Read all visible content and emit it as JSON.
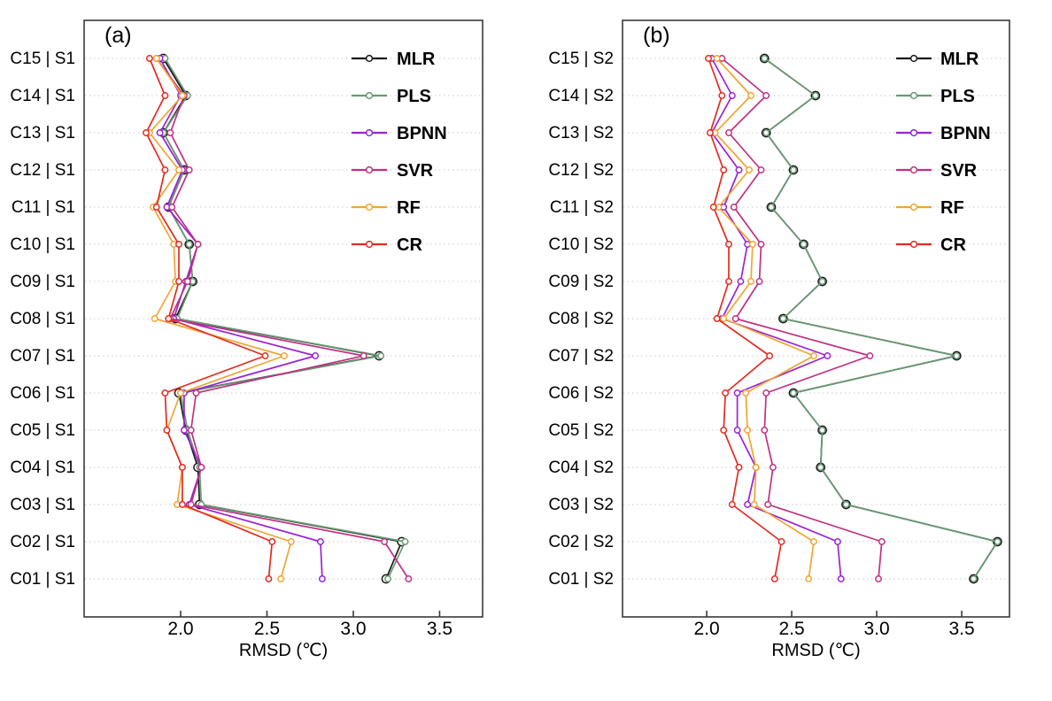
{
  "figure": {
    "background": "#ffffff",
    "axis_color": "#3a3a3a",
    "grid_color": "#c9c9c9",
    "text_color": "#000000"
  },
  "chart_data": [
    {
      "type": "line",
      "orientation": "horizontal-category",
      "panel_label": "(a)",
      "xlabel": "RMSD (℃)",
      "xticks": [
        "2.0",
        "2.5",
        "3.0",
        "3.5"
      ],
      "xtick_values": [
        2.0,
        2.5,
        3.0,
        3.5
      ],
      "xlim": [
        1.441,
        3.749
      ],
      "grid": "horizontal-dotted",
      "legend_position": "top-right-inside",
      "legend_entries": [
        "MLR",
        "PLS",
        "BPNN",
        "SVR",
        "RF",
        "CR"
      ],
      "categories": [
        "C15 | S1",
        "C14 | S1",
        "C13 | S1",
        "C12 | S1",
        "C11 | S1",
        "C10 | S1",
        "C09 | S1",
        "C08 | S1",
        "C07 | S1",
        "C06 | S1",
        "C05 | S1",
        "C04 | S1",
        "C03 | S1",
        "C02 | S1",
        "C01 | S1"
      ],
      "series": [
        {
          "name": "MLR",
          "color": "#1a1a1a",
          "values": [
            1.9,
            2.03,
            1.9,
            2.02,
            1.93,
            2.05,
            2.07,
            1.97,
            3.15,
            1.99,
            2.03,
            2.1,
            2.11,
            3.28,
            3.19
          ]
        },
        {
          "name": "PLS",
          "color": "#699a74",
          "values": [
            1.91,
            2.04,
            1.9,
            2.02,
            1.93,
            2.05,
            2.07,
            1.98,
            3.16,
            2.0,
            2.04,
            2.11,
            2.12,
            3.3,
            3.2
          ]
        },
        {
          "name": "BPNN",
          "color": "#9b22d4",
          "values": [
            1.88,
            2.0,
            1.88,
            2.01,
            1.92,
            2.1,
            2.03,
            1.96,
            2.78,
            2.02,
            2.02,
            2.12,
            2.05,
            2.81,
            2.82
          ]
        },
        {
          "name": "SVR",
          "color": "#bf3084",
          "values": [
            1.86,
            2.02,
            1.94,
            2.05,
            1.95,
            2.1,
            2.04,
            1.94,
            3.06,
            2.09,
            2.06,
            2.12,
            2.06,
            3.18,
            3.32
          ]
        },
        {
          "name": "RF",
          "color": "#f0a532",
          "values": [
            1.86,
            2.01,
            1.82,
            1.99,
            1.84,
            1.96,
            1.97,
            1.85,
            2.6,
            2.0,
            1.92,
            2.01,
            1.98,
            2.64,
            2.58
          ]
        },
        {
          "name": "CR",
          "color": "#e32a20",
          "values": [
            1.82,
            1.91,
            1.8,
            1.91,
            1.86,
            1.99,
            1.99,
            1.93,
            2.49,
            1.91,
            1.92,
            2.01,
            2.01,
            2.53,
            2.51
          ]
        }
      ]
    },
    {
      "type": "line",
      "orientation": "horizontal-category",
      "panel_label": "(b)",
      "xlabel": "RMSD (℃)",
      "xticks": [
        "2.0",
        "2.5",
        "3.0",
        "3.5"
      ],
      "xtick_values": [
        2.0,
        2.5,
        3.0,
        3.5
      ],
      "xlim": [
        1.505,
        3.781
      ],
      "grid": "horizontal-dotted",
      "legend_position": "top-right-inside",
      "legend_entries": [
        "MLR",
        "PLS",
        "BPNN",
        "SVR",
        "RF",
        "CR"
      ],
      "categories": [
        "C15 | S2",
        "C14 | S2",
        "C13 | S2",
        "C12 | S2",
        "C11 | S2",
        "C10 | S2",
        "C09 | S2",
        "C08 | S2",
        "C07 | S2",
        "C06 | S2",
        "C05 | S2",
        "C04 | S2",
        "C03 | S2",
        "C02 | S2",
        "C01 | S2"
      ],
      "series": [
        {
          "name": "MLR",
          "color": "#1a1a1a",
          "values": [
            2.34,
            2.64,
            2.35,
            2.51,
            2.38,
            2.57,
            2.68,
            2.45,
            3.47,
            2.51,
            2.68,
            2.67,
            2.82,
            3.71,
            3.57
          ]
        },
        {
          "name": "PLS",
          "color": "#699a74",
          "values": [
            2.34,
            2.64,
            2.35,
            2.51,
            2.38,
            2.57,
            2.68,
            2.45,
            3.47,
            2.51,
            2.68,
            2.67,
            2.82,
            3.71,
            3.57
          ]
        },
        {
          "name": "BPNN",
          "color": "#9b22d4",
          "values": [
            2.03,
            2.15,
            2.03,
            2.19,
            2.1,
            2.24,
            2.2,
            2.09,
            2.71,
            2.18,
            2.18,
            2.29,
            2.24,
            2.77,
            2.79
          ]
        },
        {
          "name": "SVR",
          "color": "#bf3084",
          "values": [
            2.09,
            2.35,
            2.13,
            2.32,
            2.16,
            2.32,
            2.31,
            2.17,
            2.96,
            2.35,
            2.34,
            2.39,
            2.36,
            3.03,
            3.01
          ]
        },
        {
          "name": "RF",
          "color": "#f0a532",
          "values": [
            2.06,
            2.26,
            2.05,
            2.25,
            2.07,
            2.27,
            2.26,
            2.1,
            2.63,
            2.23,
            2.24,
            2.29,
            2.28,
            2.63,
            2.6
          ]
        },
        {
          "name": "CR",
          "color": "#e32a20",
          "values": [
            2.01,
            2.09,
            2.02,
            2.1,
            2.04,
            2.13,
            2.13,
            2.06,
            2.37,
            2.11,
            2.1,
            2.19,
            2.15,
            2.44,
            2.4
          ]
        }
      ]
    }
  ]
}
